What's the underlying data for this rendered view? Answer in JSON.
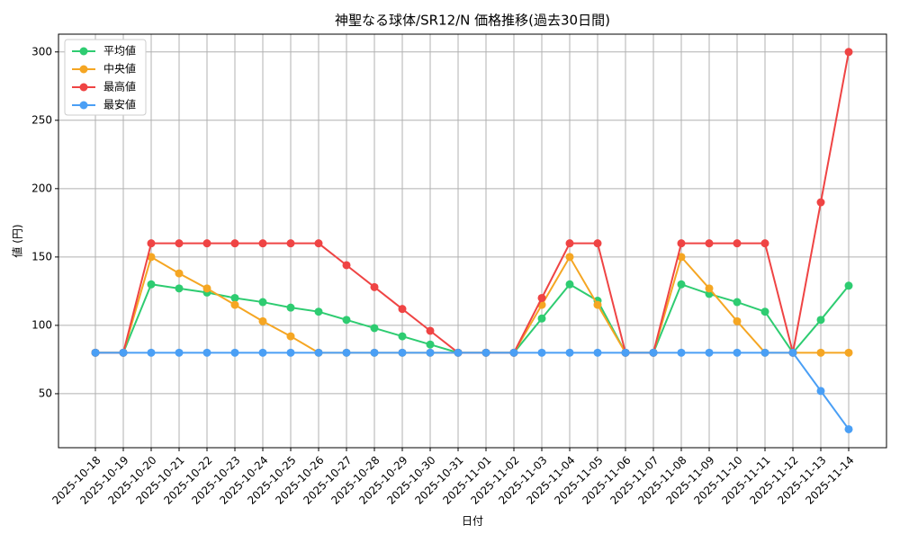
{
  "chart_data": {
    "type": "line",
    "title": "神聖なる球体/SR12/N 価格推移(過去30日間)",
    "x_label": "日付",
    "y_label": "値 (円)",
    "categories": [
      "2025-10-18",
      "2025-10-19",
      "2025-10-20",
      "2025-10-21",
      "2025-10-22",
      "2025-10-23",
      "2025-10-24",
      "2025-10-25",
      "2025-10-26",
      "2025-10-27",
      "2025-10-28",
      "2025-10-29",
      "2025-10-30",
      "2025-10-31",
      "2025-11-01",
      "2025-11-02",
      "2025-11-03",
      "2025-11-04",
      "2025-11-05",
      "2025-11-06",
      "2025-11-07",
      "2025-11-08",
      "2025-11-09",
      "2025-11-10",
      "2025-11-11",
      "2025-11-12",
      "2025-11-13",
      "2025-11-14"
    ],
    "series": [
      {
        "name": "平均値",
        "color": "#2ecc71",
        "values": [
          80,
          80,
          130,
          127,
          124,
          120,
          117,
          113,
          110,
          104,
          98,
          92,
          86,
          80,
          80,
          80,
          105,
          130,
          118,
          80,
          80,
          130,
          123,
          117,
          110,
          80,
          104,
          129
        ]
      },
      {
        "name": "中央値",
        "color": "#f5a623",
        "values": [
          80,
          80,
          150,
          138,
          127,
          115,
          103,
          92,
          80,
          80,
          80,
          80,
          80,
          80,
          80,
          80,
          115,
          150,
          115,
          80,
          80,
          150,
          127,
          103,
          80,
          80,
          80,
          80
        ]
      },
      {
        "name": "最高値",
        "color": "#ef4444",
        "values": [
          80,
          80,
          160,
          160,
          160,
          160,
          160,
          160,
          160,
          144,
          128,
          112,
          96,
          80,
          80,
          80,
          120,
          160,
          160,
          80,
          80,
          160,
          160,
          160,
          160,
          80,
          190,
          300
        ]
      },
      {
        "name": "最安値",
        "color": "#4a9ff5",
        "values": [
          80,
          80,
          80,
          80,
          80,
          80,
          80,
          80,
          80,
          80,
          80,
          80,
          80,
          80,
          80,
          80,
          80,
          80,
          80,
          80,
          80,
          80,
          80,
          80,
          80,
          80,
          52,
          24
        ]
      }
    ],
    "ylim": [
      10.5,
      313
    ],
    "yticks": [
      50,
      100,
      150,
      200,
      250,
      300
    ],
    "grid": true,
    "legend": "upper-left"
  }
}
